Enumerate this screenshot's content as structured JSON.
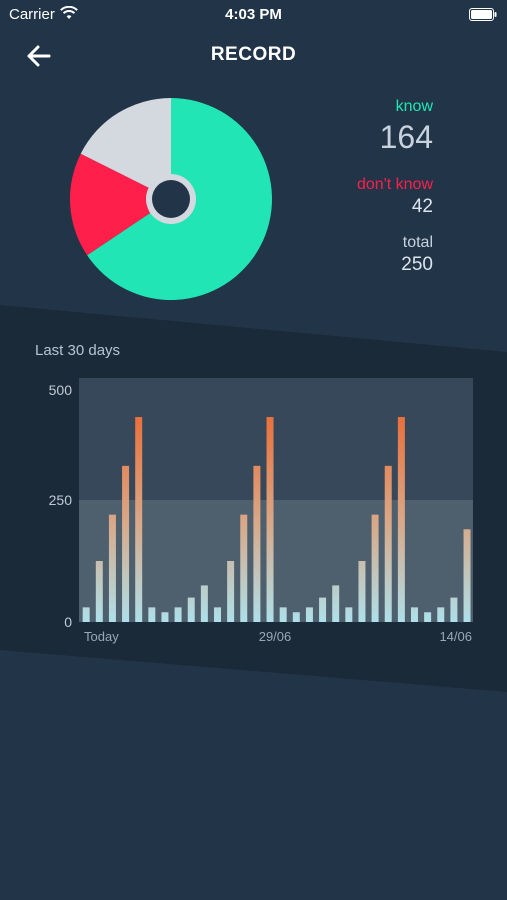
{
  "status_bar": {
    "carrier": "Carrier",
    "time": "4:03 PM"
  },
  "header": {
    "title": "RECORD",
    "back_icon": "arrow-left-icon"
  },
  "summary": {
    "know_label": "know",
    "know_value": "164",
    "dont_know_label": "don't know",
    "dont_know_value": "42",
    "total_label": "total",
    "total_value": "250"
  },
  "colors": {
    "background": "#223448",
    "know": "#21e5b5",
    "dont_know": "#ff1f4a",
    "unanswered": "#d3d9df",
    "bar_top": "#e8733f",
    "bar_bottom": "#aee0ea"
  },
  "chart_data": {
    "type": "bar",
    "title": "Last 30 days",
    "ylim": [
      0,
      500
    ],
    "y_ticks": [
      "500",
      "250",
      "0"
    ],
    "x_tick_labels": [
      "Today",
      "29/06",
      "14/06"
    ],
    "values": [
      30,
      125,
      220,
      320,
      420,
      30,
      20,
      30,
      50,
      75,
      30,
      125,
      220,
      320,
      420,
      30,
      20,
      30,
      50,
      75,
      30,
      125,
      220,
      320,
      420,
      30,
      20,
      30,
      50,
      190
    ]
  },
  "pie": {
    "know": 164,
    "dont_know": 42,
    "total": 250
  }
}
